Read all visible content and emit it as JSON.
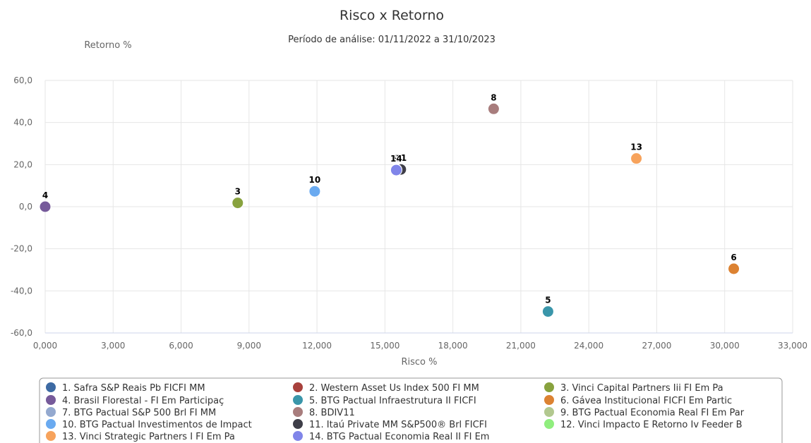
{
  "chart_data": {
    "type": "scatter",
    "title": "Risco x Retorno",
    "subtitle": "Período de análise: 01/11/2022 a 31/10/2023",
    "xlabel": "Risco %",
    "ylabel": "Retorno %",
    "xlim": [
      0,
      33
    ],
    "ylim": [
      -60,
      60
    ],
    "x_ticks": [
      "0,000",
      "3,000",
      "6,000",
      "9,000",
      "12,000",
      "15,000",
      "18,000",
      "21,000",
      "24,000",
      "27,000",
      "30,000",
      "33,000"
    ],
    "y_ticks": [
      "60,0",
      "40,0",
      "20,0",
      "0,0",
      "-20,0",
      "-40,0",
      "-60,0"
    ],
    "grid": true,
    "legend_position": "bottom",
    "series": [
      {
        "name": "1. Safra S&P Reais Pb FICFI MM",
        "label": "1",
        "color": "#3d6aa3",
        "x": 15.6,
        "y": 17.8
      },
      {
        "name": "2. Western Asset Us Index 500 FI MM",
        "label": "2",
        "color": "#a8413c",
        "x": 15.6,
        "y": 17.9
      },
      {
        "name": "3. Vinci Capital Partners Iii FI Em Pa",
        "label": "3",
        "color": "#88a23e",
        "x": 8.5,
        "y": 1.8
      },
      {
        "name": "4. Brasil Florestal - FI Em Participaç",
        "label": "4",
        "color": "#765a9a",
        "x": 0.0,
        "y": 0.0
      },
      {
        "name": "5. BTG Pactual Infraestrutura II FICFI",
        "label": "5",
        "color": "#3a96aa",
        "x": 22.2,
        "y": -49.8
      },
      {
        "name": "6. Gávea Institucional FICFI Em Partic",
        "label": "6",
        "color": "#dc8232",
        "x": 30.4,
        "y": -29.5
      },
      {
        "name": "7. BTG Pactual S&P 500 Brl FI MM",
        "label": "7",
        "color": "#94a9cf",
        "x": 15.6,
        "y": 17.7
      },
      {
        "name": "8. BDIV11",
        "label": "8",
        "color": "#a87d7d",
        "x": 19.8,
        "y": 46.5
      },
      {
        "name": "9. BTG Pactual Economia Real FI Em Par",
        "label": "9",
        "color": "#b2c88f",
        "x": 15.5,
        "y": 17.5
      },
      {
        "name": "10. BTG Pactual Investimentos de Impact",
        "label": "10",
        "color": "#6aaaf0",
        "x": 11.9,
        "y": 7.3
      },
      {
        "name": "11. Itaú Private MM S&P500® Brl FICFI",
        "label": "11",
        "color": "#3e3e48",
        "x": 15.7,
        "y": 17.7
      },
      {
        "name": "12. Vinci Impacto E Retorno Iv Feeder B",
        "label": "12",
        "color": "#90ee7e",
        "x": 15.5,
        "y": 17.6
      },
      {
        "name": "13. Vinci Strategic Partners I FI Em Pa",
        "label": "13",
        "color": "#f7a35c",
        "x": 26.1,
        "y": 22.9
      },
      {
        "name": "14. BTG Pactual Economia Real II FI Em",
        "label": "14",
        "color": "#8085e9",
        "x": 15.5,
        "y": 17.4
      }
    ]
  }
}
